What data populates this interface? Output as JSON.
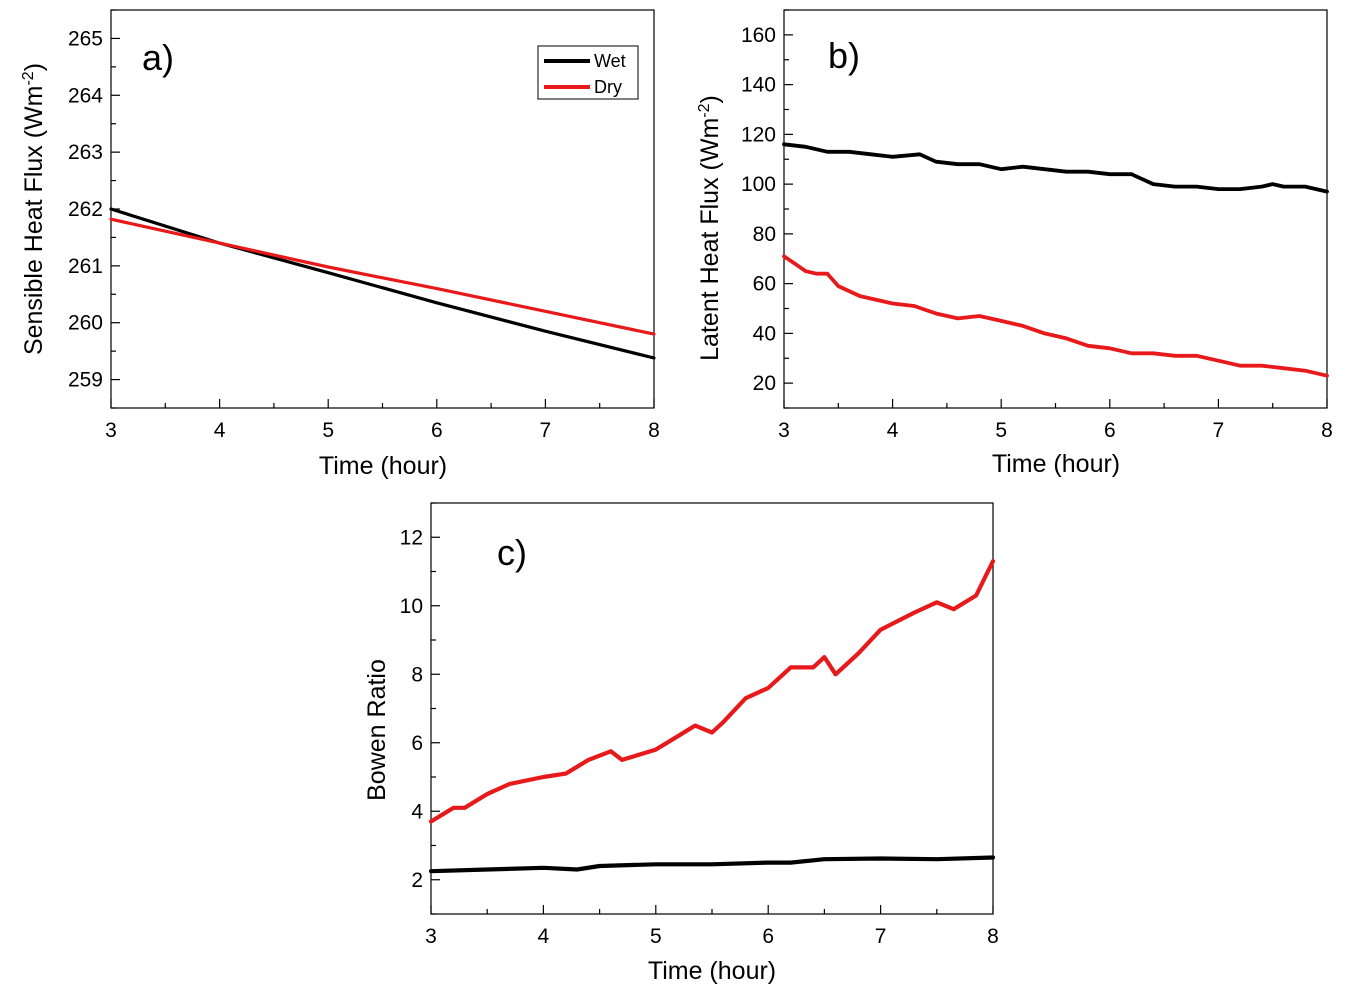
{
  "chart_data": [
    {
      "type": "line",
      "panel_label": "a)",
      "xlabel": "Time (hour)",
      "ylabel_main": "Sensible Heat Flux (Wm",
      "ylabel_sup": "-2",
      "ylabel_close": ")",
      "xlim": [
        3,
        8
      ],
      "ylim": [
        258.5,
        265.5
      ],
      "xticks": [
        "3",
        "4",
        "5",
        "6",
        "7",
        "8"
      ],
      "yticks": [
        "259",
        "260",
        "261",
        "262",
        "263",
        "264",
        "265"
      ],
      "legend": {
        "position": "top-right",
        "entries": [
          "Wet",
          "Dry"
        ]
      },
      "series": [
        {
          "name": "Wet",
          "color": "#000000",
          "x": [
            3,
            4,
            5,
            6,
            7,
            8
          ],
          "y": [
            262.0,
            261.4,
            260.88,
            260.35,
            259.85,
            259.38
          ]
        },
        {
          "name": "Dry",
          "color": "#e8191a",
          "x": [
            3,
            4,
            5,
            6,
            7,
            8
          ],
          "y": [
            261.82,
            261.4,
            260.98,
            260.6,
            260.2,
            259.8
          ]
        }
      ]
    },
    {
      "type": "line",
      "panel_label": "b)",
      "xlabel": "Time (hour)",
      "ylabel_main": "Latent Heat Flux (Wm",
      "ylabel_sup": "-2",
      "ylabel_close": ")",
      "xlim": [
        3,
        8
      ],
      "ylim": [
        10,
        170
      ],
      "xticks": [
        "3",
        "4",
        "5",
        "6",
        "7",
        "8"
      ],
      "yticks": [
        "20",
        "40",
        "60",
        "80",
        "100",
        "120",
        "140",
        "160"
      ],
      "series": [
        {
          "name": "Wet",
          "color": "#000000",
          "x": [
            3.0,
            3.2,
            3.4,
            3.6,
            3.8,
            4.0,
            4.25,
            4.4,
            4.6,
            4.8,
            5.0,
            5.2,
            5.4,
            5.6,
            5.8,
            6.0,
            6.2,
            6.4,
            6.6,
            6.8,
            7.0,
            7.2,
            7.4,
            7.5,
            7.6,
            7.8,
            8.0
          ],
          "y": [
            116,
            115,
            113,
            113,
            112,
            111,
            112,
            109,
            108,
            108,
            106,
            107,
            106,
            105,
            105,
            104,
            104,
            100,
            99,
            99,
            98,
            98,
            99,
            100,
            99,
            99,
            97
          ]
        },
        {
          "name": "Dry",
          "color": "#e8191a",
          "x": [
            3.0,
            3.1,
            3.2,
            3.3,
            3.4,
            3.5,
            3.7,
            3.9,
            4.0,
            4.2,
            4.4,
            4.6,
            4.8,
            5.0,
            5.2,
            5.4,
            5.6,
            5.8,
            6.0,
            6.2,
            6.4,
            6.6,
            6.8,
            7.0,
            7.2,
            7.4,
            7.6,
            7.8,
            8.0
          ],
          "y": [
            71,
            68,
            65,
            64,
            64,
            59,
            55,
            53,
            52,
            51,
            48,
            46,
            47,
            45,
            43,
            40,
            38,
            35,
            34,
            32,
            32,
            31,
            31,
            29,
            27,
            27,
            26,
            25,
            23
          ]
        }
      ]
    },
    {
      "type": "line",
      "panel_label": "c)",
      "xlabel": "Time (hour)",
      "ylabel_main": "Bowen Ratio",
      "ylabel_sup": "",
      "ylabel_close": "",
      "xlim": [
        3,
        8
      ],
      "ylim": [
        1,
        13
      ],
      "xticks": [
        "3",
        "4",
        "5",
        "6",
        "7",
        "8"
      ],
      "yticks": [
        "2",
        "4",
        "6",
        "8",
        "10",
        "12"
      ],
      "series": [
        {
          "name": "Wet",
          "color": "#000000",
          "x": [
            3.0,
            3.5,
            4.0,
            4.3,
            4.5,
            5.0,
            5.5,
            6.0,
            6.2,
            6.5,
            7.0,
            7.5,
            8.0
          ],
          "y": [
            2.25,
            2.3,
            2.35,
            2.3,
            2.4,
            2.45,
            2.45,
            2.5,
            2.5,
            2.6,
            2.62,
            2.6,
            2.65
          ]
        },
        {
          "name": "Dry",
          "color": "#e8191a",
          "x": [
            3.0,
            3.2,
            3.3,
            3.5,
            3.7,
            4.0,
            4.2,
            4.4,
            4.6,
            4.7,
            4.8,
            5.0,
            5.2,
            5.35,
            5.5,
            5.6,
            5.8,
            6.0,
            6.2,
            6.4,
            6.5,
            6.6,
            6.8,
            7.0,
            7.3,
            7.5,
            7.65,
            7.85,
            8.0
          ],
          "y": [
            3.7,
            4.1,
            4.1,
            4.5,
            4.8,
            5.0,
            5.1,
            5.5,
            5.75,
            5.5,
            5.6,
            5.8,
            6.2,
            6.5,
            6.3,
            6.6,
            7.3,
            7.6,
            8.2,
            8.2,
            8.5,
            8.0,
            8.6,
            9.3,
            9.8,
            10.1,
            9.9,
            10.3,
            11.3
          ]
        }
      ]
    }
  ]
}
